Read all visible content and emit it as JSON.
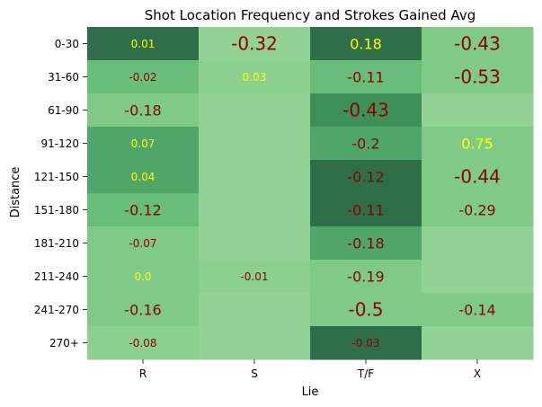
{
  "chart_data": {
    "type": "heatmap",
    "title": "Shot Location Frequency and Strokes Gained Avg",
    "xlabel": "Lie",
    "ylabel": "Distance",
    "columns": [
      "R",
      "S",
      "T/F",
      "X"
    ],
    "rows": [
      "0-30",
      "31-60",
      "61-90",
      "91-120",
      "121-150",
      "151-180",
      "181-210",
      "211-240",
      "241-270",
      "270+"
    ],
    "fill_levels": [
      [
        6,
        0,
        6,
        2
      ],
      [
        3,
        1,
        3,
        2
      ],
      [
        2,
        0,
        5,
        0
      ],
      [
        4,
        0,
        4,
        2
      ],
      [
        4,
        0,
        6,
        2
      ],
      [
        3,
        0,
        6,
        2
      ],
      [
        2,
        0,
        4,
        0
      ],
      [
        2,
        1,
        2,
        0
      ],
      [
        2,
        0,
        2,
        2
      ],
      [
        1,
        0,
        6,
        0
      ]
    ],
    "palette": [
      "#92d294",
      "#8cd08f",
      "#7fca87",
      "#68bd79",
      "#4fa66a",
      "#3c9058",
      "#2f6e49",
      "#2e8b57"
    ],
    "annotations": [
      [
        "0.01",
        "-0.32",
        "0.18",
        "-0.43"
      ],
      [
        "-0.02",
        "0.03",
        "-0.11",
        "-0.53"
      ],
      [
        "-0.18",
        "",
        "-0.43",
        ""
      ],
      [
        "0.07",
        "",
        "-0.2",
        "0.75"
      ],
      [
        "0.04",
        "",
        "-0.12",
        "-0.44"
      ],
      [
        "-0.12",
        "",
        "-0.11",
        "-0.29"
      ],
      [
        "-0.07",
        "",
        "-0.18",
        ""
      ],
      [
        "0.0",
        "-0.01",
        "-0.19",
        ""
      ],
      [
        "-0.16",
        "",
        "-0.5",
        "-0.14"
      ],
      [
        "-0.08",
        "",
        "-0.03",
        ""
      ]
    ],
    "annotation_size": [
      [
        "small",
        "large",
        "medium",
        "large"
      ],
      [
        "small",
        "small",
        "medium",
        "large"
      ],
      [
        "medium",
        "",
        "large",
        ""
      ],
      [
        "small",
        "",
        "medium",
        "medium"
      ],
      [
        "small",
        "",
        "medium",
        "large"
      ],
      [
        "medium",
        "",
        "medium",
        "medium"
      ],
      [
        "small",
        "",
        "medium",
        ""
      ],
      [
        "small",
        "small",
        "medium",
        ""
      ],
      [
        "medium",
        "",
        "large",
        "medium"
      ],
      [
        "small",
        "",
        "small",
        ""
      ]
    ],
    "label_colors": {
      "positive": "#ffff00",
      "negative": "#8b0000"
    }
  }
}
